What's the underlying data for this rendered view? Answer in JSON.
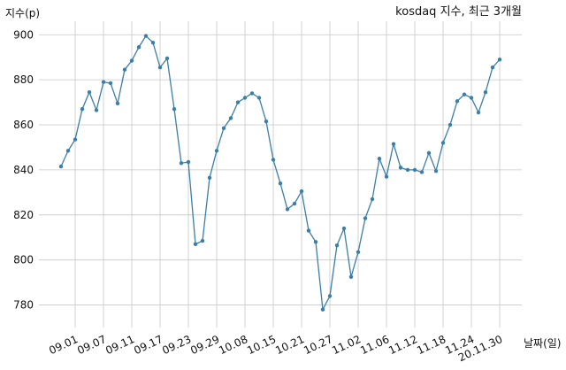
{
  "chart_data": {
    "type": "line",
    "title": "kosdaq 지수, 최근 3개월",
    "xlabel": "날짜(일)",
    "ylabel": "지수(p)",
    "ylim": [
      770,
      906
    ],
    "grid": true,
    "line_color": "#3a7fa8",
    "yticks": [
      780,
      800,
      820,
      840,
      860,
      880,
      900
    ],
    "xtick_labels": [
      "09.01",
      "09.07",
      "09.11",
      "09.17",
      "09.23",
      "09.29",
      "10.08",
      "10.15",
      "10.21",
      "10.27",
      "11.02",
      "11.06",
      "11.12",
      "11.18",
      "11.24",
      "20.11.30"
    ],
    "xtick_index": [
      2,
      6,
      10,
      14,
      18,
      22,
      26,
      30,
      34,
      38,
      42,
      46,
      50,
      54,
      58,
      62
    ],
    "series": [
      {
        "values": [
          841.5,
          848.5,
          853.5,
          867,
          874.5,
          866.5,
          879,
          878.5,
          869.5,
          884.5,
          888.5,
          894.5,
          899.5,
          896.5,
          885.5,
          889.5,
          867,
          843,
          843.5,
          807,
          808.5,
          836.5,
          848.5,
          858.5,
          863,
          870,
          872,
          874,
          872,
          861.5,
          844.5,
          834,
          822.5,
          825,
          830.5,
          813,
          808,
          778,
          784,
          806.5,
          814,
          792.5,
          803.5,
          818.5,
          827,
          845,
          837,
          851.5,
          841,
          840,
          840,
          839,
          847.5,
          839.5,
          852,
          860,
          870.5,
          873.5,
          872,
          865.5,
          874.5,
          885.5,
          889
        ]
      }
    ]
  }
}
